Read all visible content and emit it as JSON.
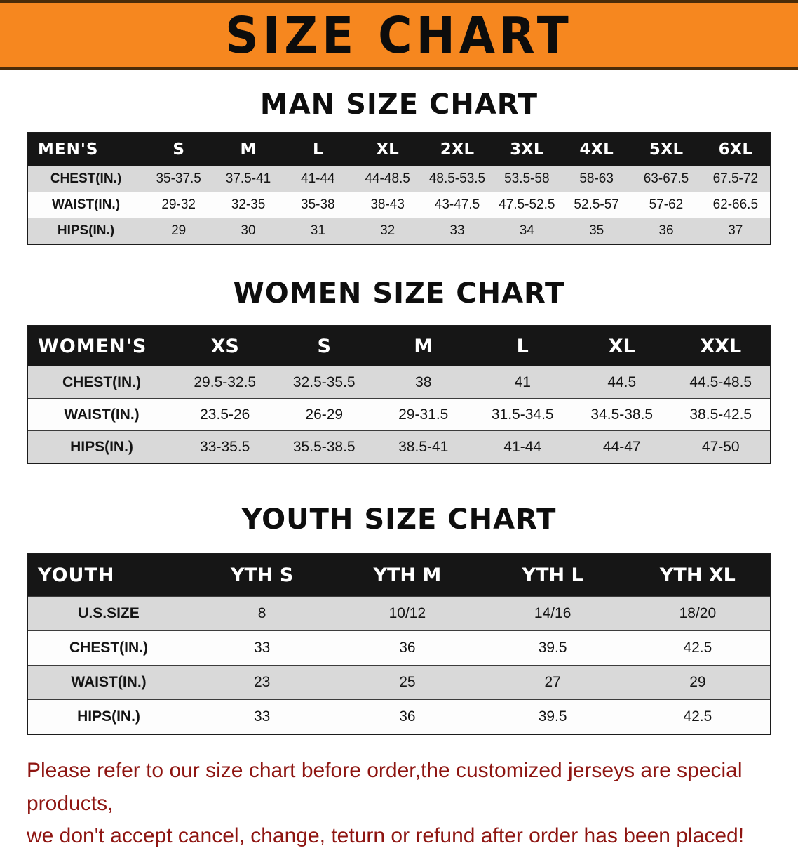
{
  "banner": {
    "title": "SIZE CHART"
  },
  "sections": [
    {
      "heading": "MAN SIZE CHART",
      "table": {
        "header": [
          "MEN'S",
          "S",
          "M",
          "L",
          "XL",
          "2XL",
          "3XL",
          "4XL",
          "5XL",
          "6XL"
        ],
        "rows": [
          [
            "CHEST(IN.)",
            "35-37.5",
            "37.5-41",
            "41-44",
            "44-48.5",
            "48.5-53.5",
            "53.5-58",
            "58-63",
            "63-67.5",
            "67.5-72"
          ],
          [
            "WAIST(IN.)",
            "29-32",
            "32-35",
            "35-38",
            "38-43",
            "43-47.5",
            "47.5-52.5",
            "52.5-57",
            "57-62",
            "62-66.5"
          ],
          [
            "HIPS(IN.)",
            "29",
            "30",
            "31",
            "32",
            "33",
            "34",
            "35",
            "36",
            "37"
          ]
        ]
      }
    },
    {
      "heading": "WOMEN SIZE CHART",
      "table": {
        "header": [
          "WOMEN'S",
          "XS",
          "S",
          "M",
          "L",
          "XL",
          "XXL"
        ],
        "rows": [
          [
            "CHEST(IN.)",
            "29.5-32.5",
            "32.5-35.5",
            "38",
            "41",
            "44.5",
            "44.5-48.5"
          ],
          [
            "WAIST(IN.)",
            "23.5-26",
            "26-29",
            "29-31.5",
            "31.5-34.5",
            "34.5-38.5",
            "38.5-42.5"
          ],
          [
            "HIPS(IN.)",
            "33-35.5",
            "35.5-38.5",
            "38.5-41",
            "41-44",
            "44-47",
            "47-50"
          ]
        ]
      }
    },
    {
      "heading": "YOUTH SIZE CHART",
      "table": {
        "header": [
          "YOUTH",
          "YTH S",
          "YTH M",
          "YTH L",
          "YTH XL"
        ],
        "rows": [
          [
            "U.S.SIZE",
            "8",
            "10/12",
            "14/16",
            "18/20"
          ],
          [
            "CHEST(IN.)",
            "33",
            "36",
            "39.5",
            "42.5"
          ],
          [
            "WAIST(IN.)",
            "23",
            "25",
            "27",
            "29"
          ],
          [
            "HIPS(IN.)",
            "33",
            "36",
            "39.5",
            "42.5"
          ]
        ]
      }
    }
  ],
  "footer": {
    "line1": "Please refer to our size chart before order,the customized jerseys are special products,",
    "line2": "we don't accept cancel, change, teturn or refund after order has been placed!"
  },
  "colors": {
    "banner_orange": "#f6871f",
    "table_header_black": "#161616",
    "stripe_gray": "#d9d9d9",
    "footer_red": "#8e1511"
  }
}
